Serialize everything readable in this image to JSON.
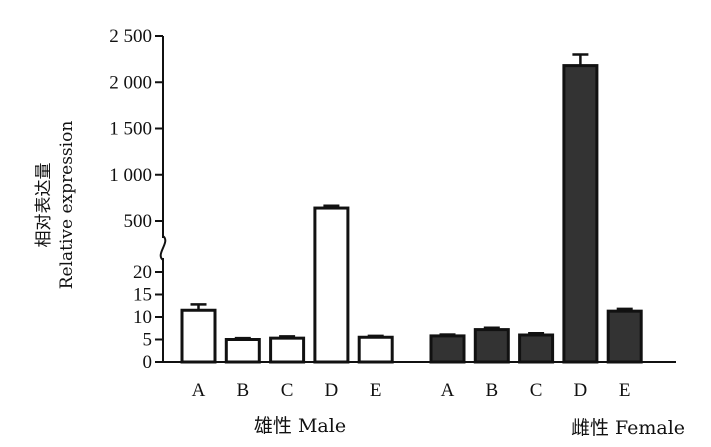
{
  "chart_data": {
    "type": "bar",
    "ylabel_cn": "相对表达量",
    "ylabel_en": "Relative  expression",
    "y_break": [
      20,
      500
    ],
    "ylim_lower": [
      0,
      20
    ],
    "ylim_upper": [
      500,
      2500
    ],
    "yticks_lower": [
      {
        "value": 0,
        "label": "0"
      },
      {
        "value": 5,
        "label": "5"
      },
      {
        "value": 10,
        "label": "10"
      },
      {
        "value": 15,
        "label": "15"
      },
      {
        "value": 20,
        "label": "20"
      }
    ],
    "yticks_upper": [
      {
        "value": 500,
        "label": "500"
      },
      {
        "value": 1000,
        "label": "1 000"
      },
      {
        "value": 1500,
        "label": "1 500"
      },
      {
        "value": 2000,
        "label": "2 000"
      },
      {
        "value": 2500,
        "label": "2 500"
      }
    ],
    "groups": [
      {
        "label": "雄性 Male",
        "color": "#ffffff",
        "bars": [
          {
            "category": "A",
            "value": 11.5,
            "error": 1.3
          },
          {
            "category": "B",
            "value": 5.0,
            "error": 0.3
          },
          {
            "category": "C",
            "value": 5.3,
            "error": 0.4
          },
          {
            "category": "D",
            "value": 640,
            "error": 25
          },
          {
            "category": "E",
            "value": 5.5,
            "error": 0.3
          }
        ]
      },
      {
        "label": "雌性 Female",
        "color": "#333333",
        "bars": [
          {
            "category": "A",
            "value": 5.8,
            "error": 0.3
          },
          {
            "category": "B",
            "value": 7.2,
            "error": 0.4
          },
          {
            "category": "C",
            "value": 6.0,
            "error": 0.4
          },
          {
            "category": "D",
            "value": 2180,
            "error": 120
          },
          {
            "category": "E",
            "value": 11.3,
            "error": 0.5
          }
        ]
      }
    ]
  }
}
